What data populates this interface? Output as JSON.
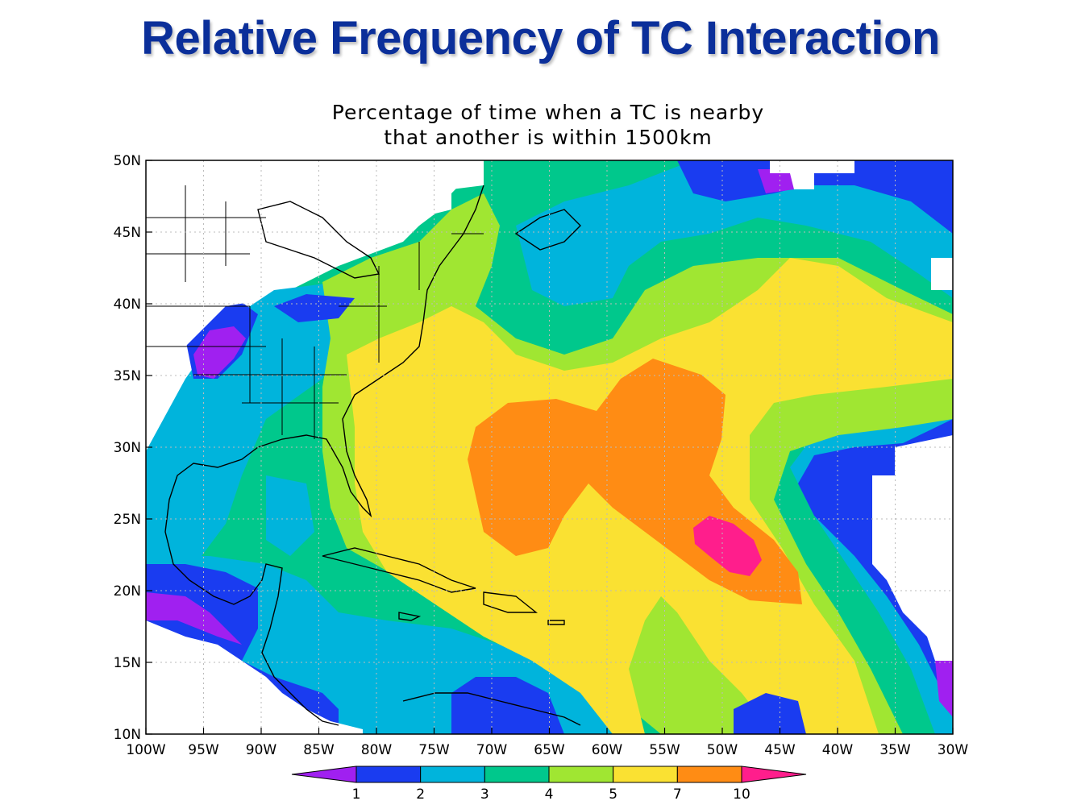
{
  "slide": {
    "title": "Relative Frequency of TC Interaction"
  },
  "map": {
    "title_line1": "Percentage of time when a TC is nearby",
    "title_line2": "that another is within 1500km",
    "lon_labels": [
      "100W",
      "95W",
      "90W",
      "85W",
      "80W",
      "75W",
      "70W",
      "65W",
      "60W",
      "55W",
      "50W",
      "45W",
      "40W",
      "35W",
      "30W"
    ],
    "lat_labels": [
      "50N",
      "45N",
      "40N",
      "35N",
      "30N",
      "25N",
      "20N",
      "15N",
      "10N"
    ],
    "lon_range": [
      -100,
      -30
    ],
    "lat_range": [
      10,
      50
    ],
    "grid": "dotted"
  },
  "colorbar": {
    "labels": [
      "1",
      "2",
      "3",
      "4",
      "5",
      "7",
      "10"
    ],
    "colors": [
      "#a020f0",
      "#1a3cf0",
      "#00b4dc",
      "#00c88c",
      "#a0e632",
      "#fae132",
      "#ff8c14",
      "#ff1e8c"
    ]
  }
}
